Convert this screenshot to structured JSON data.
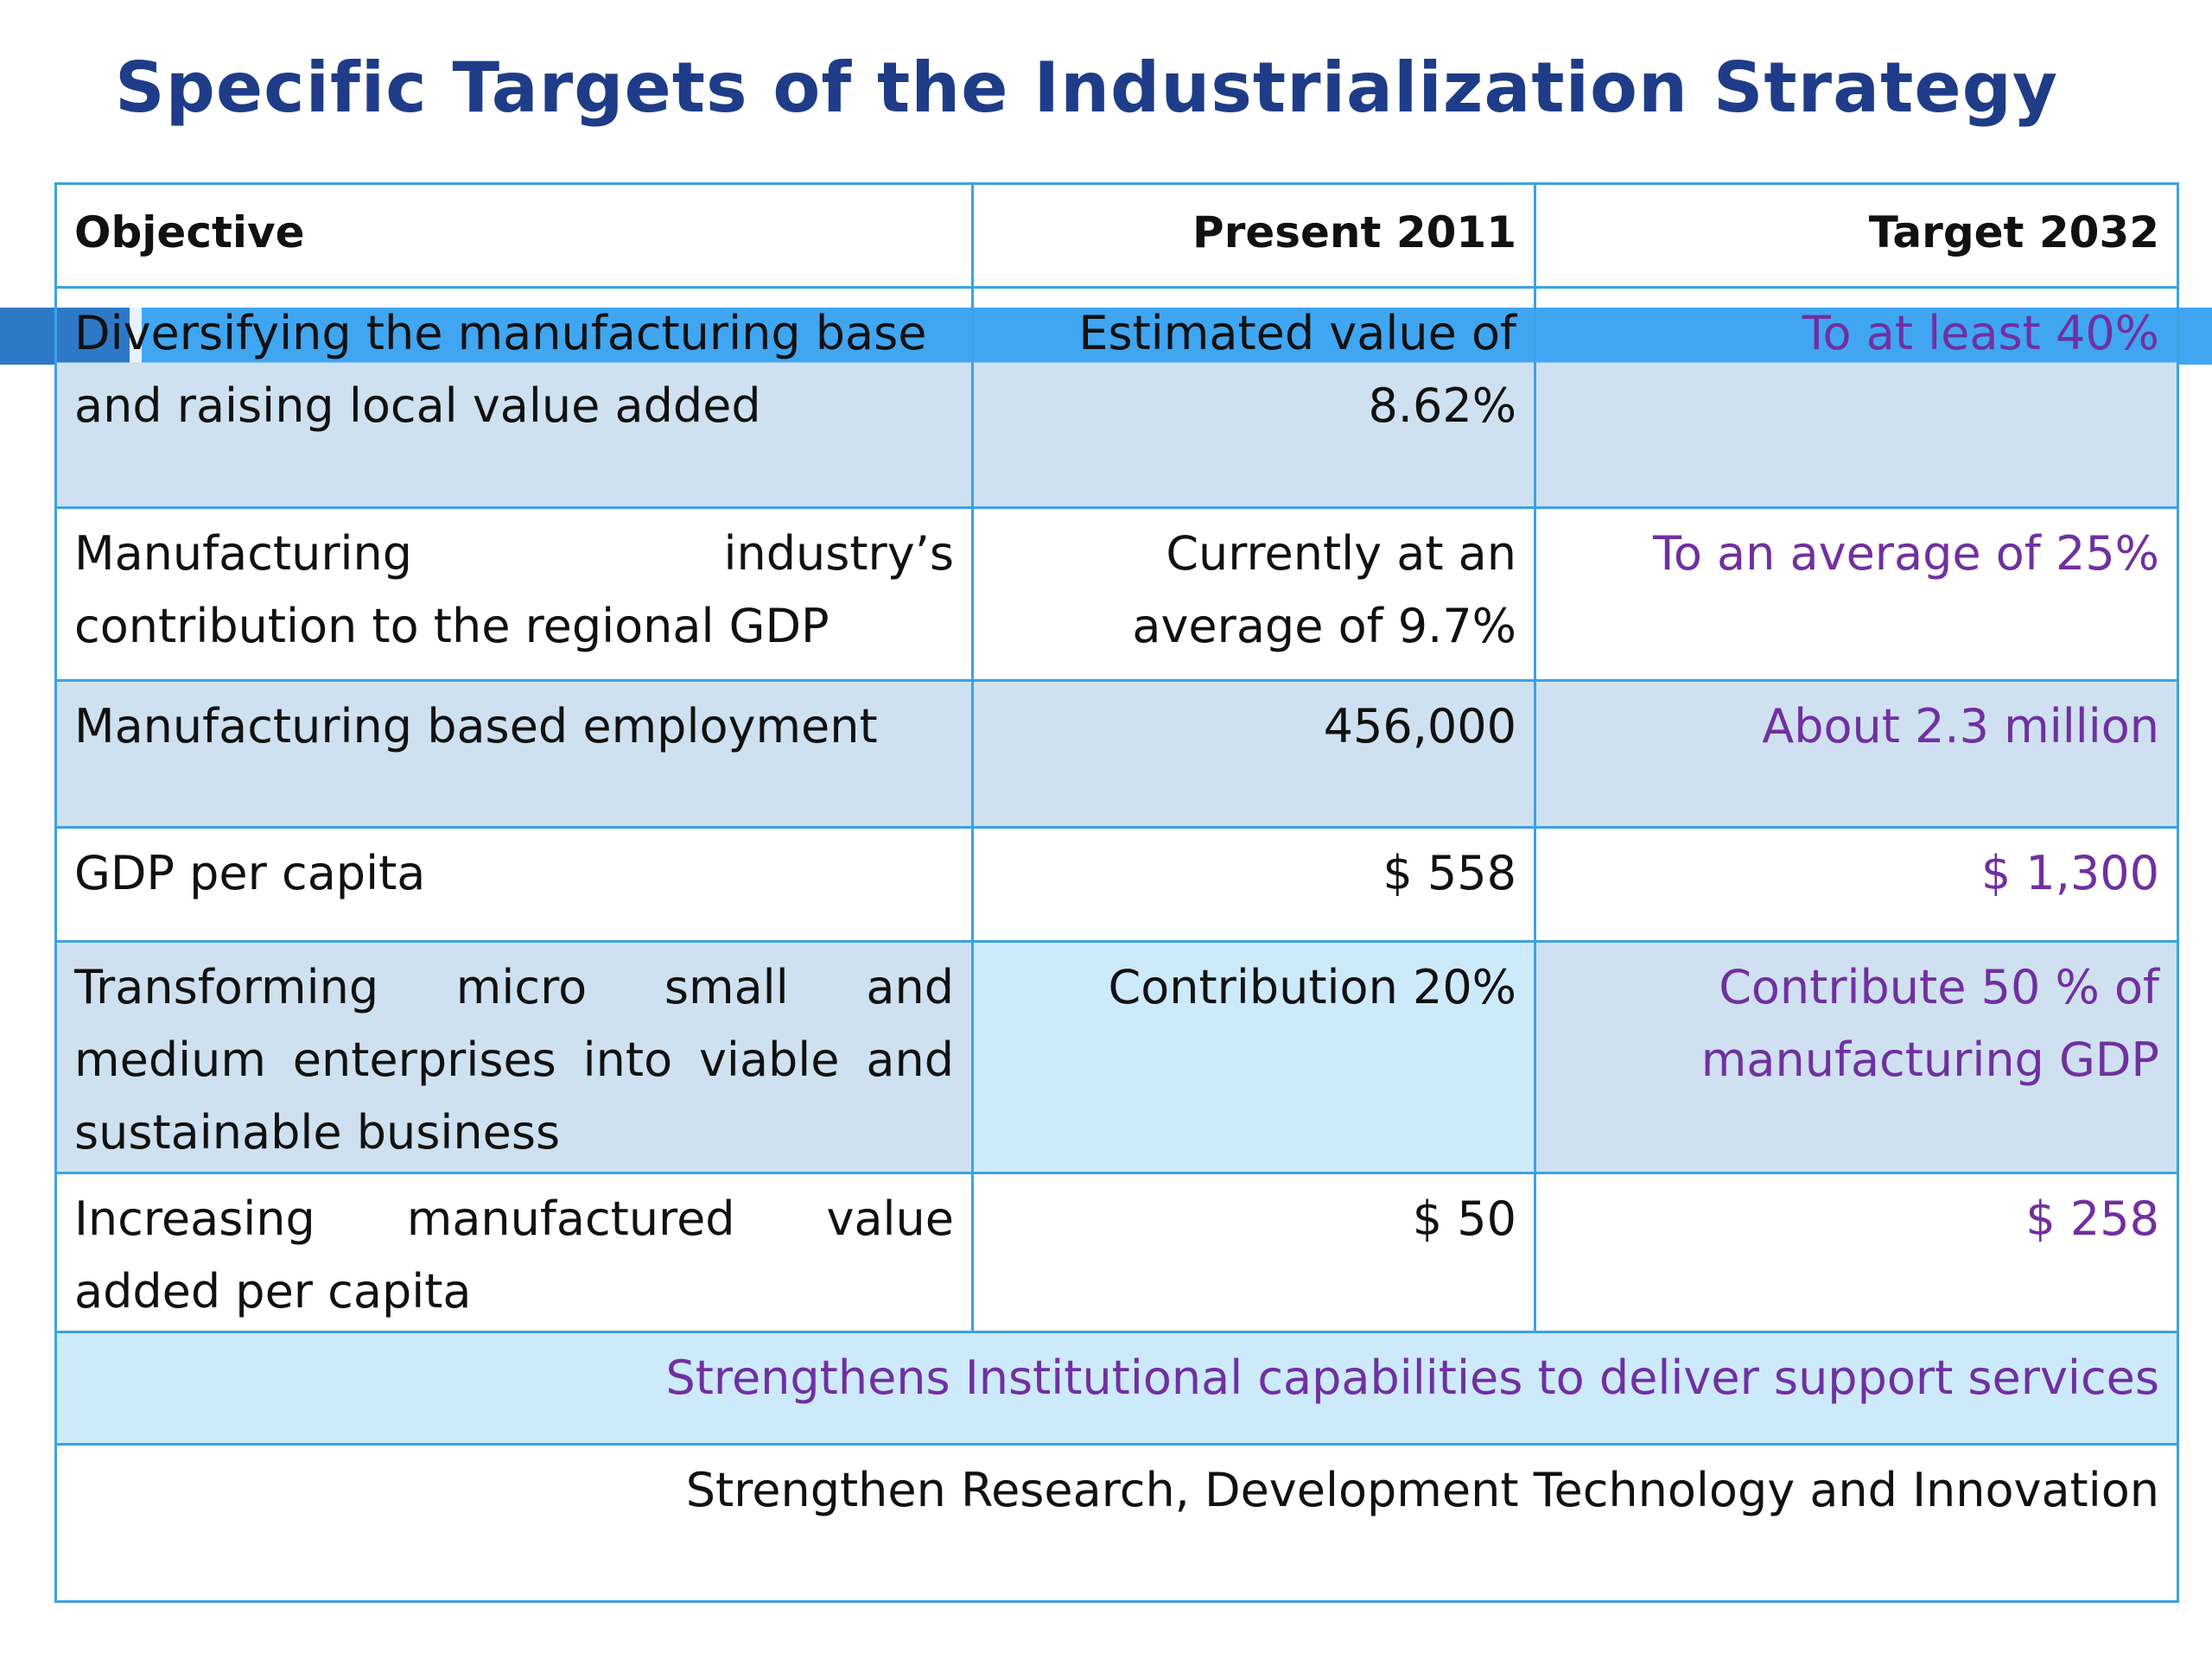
{
  "title": "Specific Targets of the Industrialization Strategy",
  "table": {
    "headers": {
      "objective": "Objective",
      "present": "Present 2011",
      "target": "Target 2032"
    },
    "rows": [
      {
        "objective": "Diversifying the manufacturing base and raising local value added",
        "present": "Estimated value of 8.62%",
        "target": "To at least 40%"
      },
      {
        "objective": "Manufacturing industry’s contribution to the regional GDP",
        "present": "Currently at an average of 9.7%",
        "target": "To an average of 25%"
      },
      {
        "objective": "Manufacturing based employment",
        "present": "456,000",
        "target": "About 2.3 million"
      },
      {
        "objective": "GDP per capita",
        "present": "$ 558",
        "target": "$ 1,300"
      },
      {
        "objective": "Transforming micro small and medium enterprises into viable and sustainable business",
        "present": "Contribution 20%",
        "target": "Contribute 50 % of manufacturing GDP"
      },
      {
        "objective": "Increasing manufactured value added per capita",
        "present": "$ 50",
        "target": "$ 258"
      }
    ],
    "full_rows": [
      "Strengthens Institutional capabilities to deliver support services",
      "Strengthen Research, Development Technology and  Innovation"
    ]
  },
  "colors": {
    "title": "#1f3c88",
    "target_text": "#7030a0",
    "border": "#3aa3e3",
    "shade": "#cfe1f0",
    "light_shade": "#cdeafb",
    "highlight": "#1e96f0"
  }
}
